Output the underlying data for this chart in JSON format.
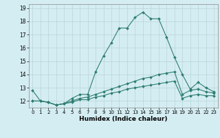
{
  "xlabel": "Humidex (Indice chaleur)",
  "x": [
    0,
    1,
    2,
    3,
    4,
    5,
    6,
    7,
    8,
    9,
    10,
    11,
    12,
    13,
    14,
    15,
    16,
    17,
    18,
    19,
    20,
    21,
    22,
    23
  ],
  "line1": [
    12.8,
    12.0,
    11.9,
    11.7,
    11.8,
    12.2,
    12.5,
    12.5,
    14.2,
    15.4,
    16.4,
    17.5,
    17.5,
    18.3,
    18.7,
    18.2,
    18.2,
    16.8,
    15.3,
    14.0,
    12.9,
    13.4,
    13.0,
    12.7
  ],
  "line2": [
    12.0,
    12.0,
    11.9,
    11.7,
    11.8,
    12.0,
    12.2,
    12.3,
    12.5,
    12.7,
    12.9,
    13.1,
    13.3,
    13.5,
    13.7,
    13.8,
    14.0,
    14.1,
    14.2,
    12.5,
    12.8,
    12.9,
    12.7,
    12.6
  ],
  "line3": [
    12.0,
    12.0,
    11.9,
    11.7,
    11.8,
    11.9,
    12.1,
    12.1,
    12.3,
    12.4,
    12.6,
    12.7,
    12.9,
    13.0,
    13.1,
    13.2,
    13.3,
    13.4,
    13.5,
    12.2,
    12.4,
    12.5,
    12.4,
    12.4
  ],
  "line_color": "#2e7d6e",
  "bg_color": "#d4edf2",
  "grid_color": "#b8d4da",
  "ylim": [
    11.5,
    19.3
  ],
  "xlim": [
    -0.5,
    23.5
  ],
  "yticks": [
    12,
    13,
    14,
    15,
    16,
    17,
    18,
    19
  ],
  "xticks": [
    0,
    1,
    2,
    3,
    4,
    5,
    6,
    7,
    8,
    9,
    10,
    11,
    12,
    13,
    14,
    15,
    16,
    17,
    18,
    19,
    20,
    21,
    22,
    23
  ]
}
